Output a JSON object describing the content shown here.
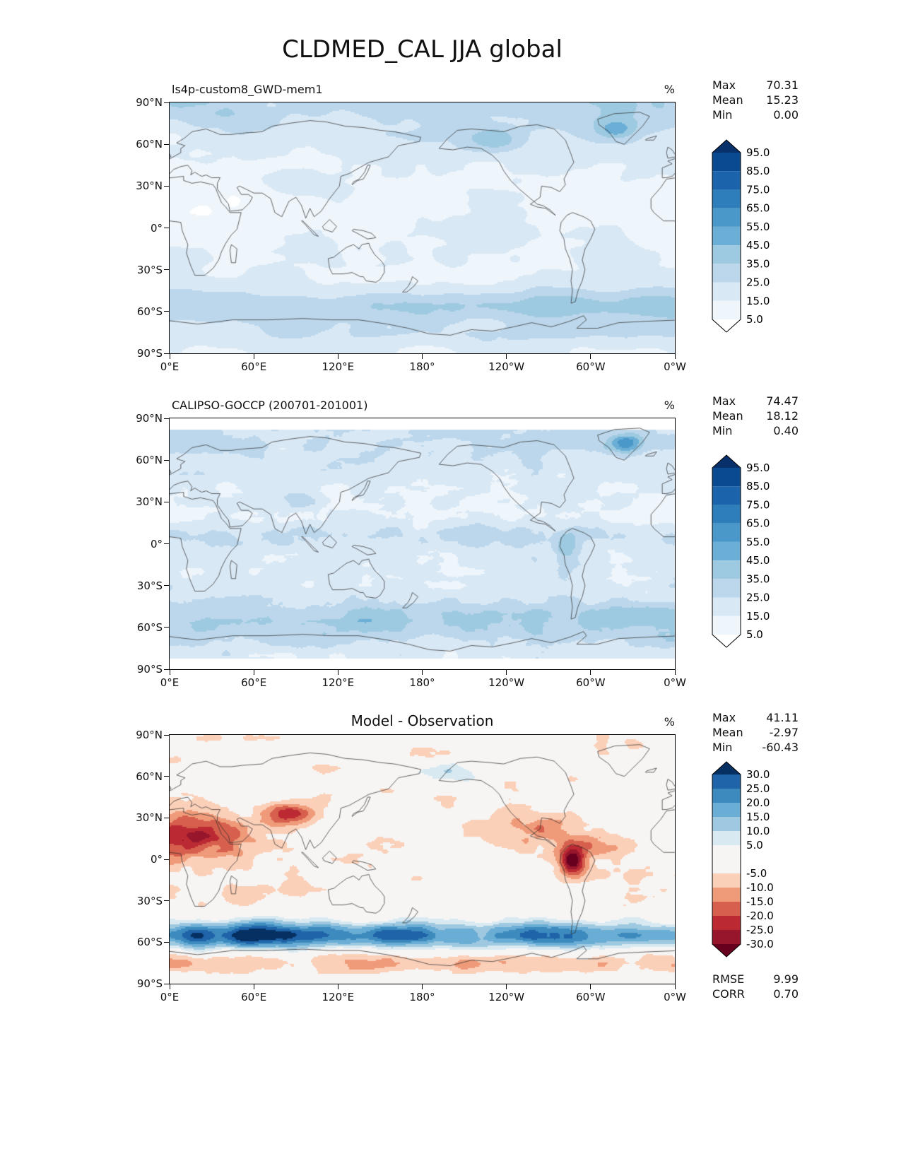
{
  "title": "CLDMED_CAL JJA global",
  "axes": {
    "lat_ticks": [
      "90°N",
      "60°N",
      "30°N",
      "0°",
      "30°S",
      "60°S",
      "90°S"
    ],
    "lon_ticks": [
      "0°E",
      "60°E",
      "120°E",
      "180°",
      "120°W",
      "60°W",
      "0°W"
    ]
  },
  "panels": [
    {
      "title": "ls4p-custom8_GWD-mem1",
      "unit": "%",
      "stats": {
        "max_label": "Max",
        "max_value": "70.31",
        "mean_label": "Mean",
        "mean_value": "15.23",
        "min_label": "Min",
        "min_value": "0.00"
      },
      "colorbar": {
        "tick_labels": [
          "95.0",
          "85.0",
          "75.0",
          "65.0",
          "55.0",
          "45.0",
          "35.0",
          "25.0",
          "15.0",
          "5.0"
        ],
        "colors_top_down": [
          "#08306b",
          "#0a4a90",
          "#1b64ab",
          "#2e7ebc",
          "#4a97c9",
          "#6baed6",
          "#9ecae1",
          "#bcd7eb",
          "#d9e8f5",
          "#eef5fb",
          "#ffffff"
        ]
      }
    },
    {
      "title": "CALIPSO-GOCCP (200701-201001)",
      "unit": "%",
      "stats": {
        "max_label": "Max",
        "max_value": "74.47",
        "mean_label": "Mean",
        "mean_value": "18.12",
        "min_label": "Min",
        "min_value": "0.40"
      },
      "colorbar": {
        "tick_labels": [
          "95.0",
          "85.0",
          "75.0",
          "65.0",
          "55.0",
          "45.0",
          "35.0",
          "25.0",
          "15.0",
          "5.0"
        ],
        "colors_top_down": [
          "#08306b",
          "#0a4a90",
          "#1b64ab",
          "#2e7ebc",
          "#4a97c9",
          "#6baed6",
          "#9ecae1",
          "#bcd7eb",
          "#d9e8f5",
          "#eef5fb",
          "#ffffff"
        ]
      }
    },
    {
      "title": "Model - Observation",
      "unit": "%",
      "stats": {
        "max_label": "Max",
        "max_value": "41.11",
        "mean_label": "Mean",
        "mean_value": "-2.97",
        "min_label": "Min",
        "min_value": "-60.43"
      },
      "colorbar": {
        "tick_labels": [
          "30.0",
          "25.0",
          "20.0",
          "15.0",
          "10.0",
          "5.0",
          "-5.0",
          "-10.0",
          "-15.0",
          "-20.0",
          "-25.0",
          "-30.0"
        ],
        "colors_top_down": [
          "#053061",
          "#1f63a8",
          "#3c8abe",
          "#6aadd5",
          "#9fc9e0",
          "#d8e9f1",
          "#f7f5f4",
          "#fbd0b9",
          "#ef9b7a",
          "#d6604d",
          "#bb2a33",
          "#98162b",
          "#67001f"
        ]
      },
      "extra_stats": {
        "rmse_label": "RMSE",
        "rmse_value": "9.99",
        "corr_label": "CORR",
        "corr_value": "0.70"
      }
    }
  ],
  "chart_data": {
    "type": "heatmap",
    "subtype": "filled-contour global latitude-longitude maps (equirectangular), 3-panel model vs observation comparison",
    "figure_title": "CLDMED_CAL JJA global",
    "variable": "CLDMED_CAL (mid-level cloud fraction from CALIPSO simulator)",
    "season": "JJA",
    "region": "global",
    "units": "%",
    "lon_axis": {
      "tick_values_deg_east": [
        0,
        60,
        120,
        180,
        240,
        300,
        360
      ],
      "tick_labels": [
        "0°E",
        "60°E",
        "120°E",
        "180°",
        "120°W",
        "60°W",
        "0°W"
      ]
    },
    "lat_axis": {
      "tick_values": [
        90,
        60,
        30,
        0,
        -30,
        -60,
        -90
      ],
      "tick_labels": [
        "90°N",
        "60°N",
        "30°N",
        "0°",
        "30°S",
        "60°S",
        "90°S"
      ]
    },
    "panels": [
      {
        "title": "ls4p-custom8_GWD-mem1",
        "role": "model",
        "colormap": "Blues",
        "contour_levels": [
          5,
          15,
          25,
          35,
          45,
          55,
          65,
          75,
          85,
          95
        ],
        "extend": "both",
        "max": 70.31,
        "mean": 15.23,
        "min": 0.0,
        "notable_features": "mostly 5-25% over oceans; 35-55% storm-track band near 55-60S; enhanced patches over Tibetan Plateau, NW Canada/Bering region and subpolar North Atlantic; light values in subtropics"
      },
      {
        "title": "CALIPSO-GOCCP (200701-201001)",
        "role": "observation",
        "colormap": "Blues",
        "contour_levels": [
          5,
          15,
          25,
          35,
          45,
          55,
          65,
          75,
          85,
          95
        ],
        "extend": "both",
        "max": 74.47,
        "mean": 18.12,
        "min": 0.4,
        "notable_features": "granular 10-30% field; Southern Ocean band 30-45%; maxima >60% in subpolar North Atlantic and off western equatorial South America; no data poleward of about 82 degrees"
      },
      {
        "title": "Model - Observation",
        "role": "difference",
        "colormap": "RdBu",
        "contour_levels": [
          -30,
          -25,
          -20,
          -15,
          -10,
          -5,
          5,
          10,
          15,
          20,
          25,
          30
        ],
        "extend": "both",
        "max": 41.11,
        "mean": -2.97,
        "min": -60.43,
        "rmse": 9.99,
        "corr": 0.7,
        "notable_features": "positive (blue) bias band exceeding +30% over Southern Ocean 50-65S strongest 20-120E; negative (red) biases over North Africa/Arabia, Tibetan Plateau, Mexico/Caribbean and a strong minimum over the Andes/western Amazon"
      }
    ]
  }
}
